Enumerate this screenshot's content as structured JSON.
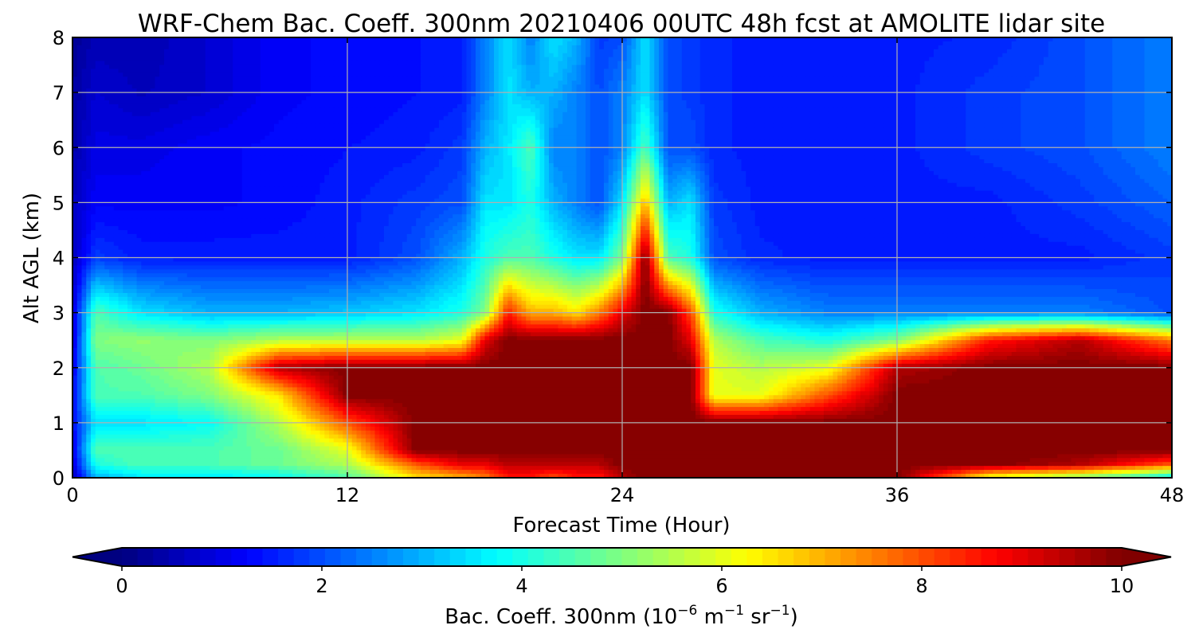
{
  "chart_data": {
    "type": "heatmap",
    "title": "WRF-Chem Bac. Coeff. 300nm  20210406 00UTC 48h fcst at AMOLITE lidar site",
    "xlabel": "Forecast Time (Hour)",
    "ylabel": "Alt AGL (km)",
    "xlim": [
      0,
      48
    ],
    "ylim": [
      0,
      8
    ],
    "x_ticks": [
      "0",
      "12",
      "24",
      "36",
      "48"
    ],
    "y_ticks": [
      "0",
      "1",
      "2",
      "3",
      "4",
      "5",
      "6",
      "7",
      "8"
    ],
    "grid": true,
    "colormap": "jet",
    "colorbar": {
      "label_main": "Bac. Coeff. 300nm  (10",
      "label_exp1": "−6",
      "label_mid": " m",
      "label_exp2": "−1",
      "label_mid2": " sr",
      "label_exp3": "−1",
      "label_end": ")",
      "range": [
        0,
        10
      ],
      "extend": "both",
      "ticks": [
        "0",
        "2",
        "4",
        "6",
        "8",
        "10"
      ],
      "placement": "bottom"
    },
    "x": [
      0,
      1,
      3,
      6,
      9,
      12,
      15,
      17,
      18,
      19,
      20,
      21,
      22,
      23,
      24,
      25,
      26,
      27,
      28,
      30,
      33,
      36,
      40,
      44,
      48
    ],
    "y": [
      0,
      0.25,
      0.5,
      1,
      1.5,
      2,
      2.5,
      3,
      4,
      5,
      6,
      7,
      8
    ],
    "z": [
      [
        0.5,
        3.0,
        3.5,
        3.5,
        3.8,
        4.5,
        6.5,
        7.0,
        7.5,
        8.5,
        8.5,
        8.0,
        8.5,
        8.5,
        9.5,
        10,
        10,
        10,
        10,
        10,
        10,
        10,
        6.0,
        5.0,
        3.5
      ],
      [
        0.8,
        4.0,
        4.5,
        4.5,
        4.8,
        5.5,
        8.0,
        9.0,
        9.0,
        9.5,
        9.5,
        9.5,
        9.5,
        9.5,
        10,
        10,
        10,
        10,
        10,
        10,
        10,
        10,
        10,
        9.5,
        8.0
      ],
      [
        1.0,
        4.5,
        4.5,
        4.5,
        4.8,
        6.0,
        10,
        10,
        10,
        10,
        10,
        10,
        10,
        10,
        10,
        10,
        10,
        10,
        10,
        10,
        10,
        10,
        10,
        10,
        10
      ],
      [
        1.2,
        3.5,
        3.5,
        3.8,
        5.5,
        8.0,
        10,
        10,
        10,
        10,
        10,
        10,
        10,
        10,
        10,
        10,
        10,
        10,
        10,
        10,
        10,
        10,
        10,
        10,
        10
      ],
      [
        1.2,
        4.5,
        4.5,
        5.0,
        6.5,
        10,
        10,
        10,
        10,
        10,
        10,
        10,
        10,
        10,
        10,
        10,
        10,
        10,
        6.0,
        6.0,
        8.0,
        10,
        10,
        10,
        10
      ],
      [
        1.0,
        4.5,
        4.8,
        5.5,
        9.5,
        10,
        10,
        10,
        10,
        10,
        10,
        10,
        10,
        10,
        10,
        10,
        10,
        10,
        6.0,
        5.5,
        6.0,
        9.5,
        10,
        10,
        10
      ],
      [
        0.8,
        5.0,
        5.2,
        5.0,
        5.5,
        5.5,
        5.5,
        6.0,
        9.0,
        10,
        10,
        10,
        10,
        10,
        10,
        10,
        10,
        9.0,
        5.5,
        4.5,
        4.0,
        5.0,
        8.5,
        9.5,
        7.5
      ],
      [
        0.8,
        4.5,
        3.5,
        3.0,
        3.0,
        3.2,
        3.5,
        4.0,
        5.0,
        8.5,
        7.0,
        7.0,
        6.5,
        7.5,
        9.0,
        10,
        10,
        8.0,
        4.0,
        3.0,
        2.5,
        2.5,
        2.5,
        2.5,
        2.0
      ],
      [
        0.6,
        1.8,
        1.5,
        1.5,
        1.5,
        1.5,
        2.0,
        3.0,
        4.0,
        4.5,
        4.5,
        4.0,
        3.5,
        3.5,
        5.0,
        10,
        4.5,
        4.0,
        2.0,
        1.6,
        1.5,
        1.5,
        1.5,
        1.5,
        1.8
      ],
      [
        0.6,
        1.2,
        1.2,
        1.2,
        1.3,
        1.5,
        1.8,
        2.0,
        3.5,
        3.5,
        4.0,
        3.0,
        2.5,
        2.0,
        3.5,
        7.0,
        3.0,
        3.5,
        1.8,
        1.5,
        1.5,
        1.5,
        1.5,
        1.8,
        2.2
      ],
      [
        0.4,
        1.0,
        1.0,
        1.2,
        1.3,
        1.4,
        1.5,
        1.8,
        3.0,
        3.5,
        4.5,
        2.5,
        2.5,
        2.0,
        2.5,
        4.5,
        2.0,
        2.0,
        1.6,
        1.5,
        1.5,
        1.5,
        1.8,
        2.0,
        2.5
      ],
      [
        0.3,
        0.8,
        0.6,
        0.8,
        1.2,
        1.3,
        1.4,
        1.5,
        2.5,
        3.5,
        3.0,
        3.0,
        2.5,
        2.0,
        2.5,
        3.5,
        2.0,
        1.8,
        1.6,
        1.5,
        1.5,
        1.5,
        1.8,
        2.0,
        2.5
      ],
      [
        0.2,
        0.5,
        0.5,
        0.8,
        1.2,
        1.3,
        1.4,
        1.5,
        2.5,
        3.5,
        2.5,
        3.5,
        3.0,
        1.8,
        2.0,
        3.5,
        2.0,
        1.8,
        1.6,
        1.5,
        1.5,
        1.5,
        1.6,
        2.0,
        2.5
      ]
    ]
  }
}
